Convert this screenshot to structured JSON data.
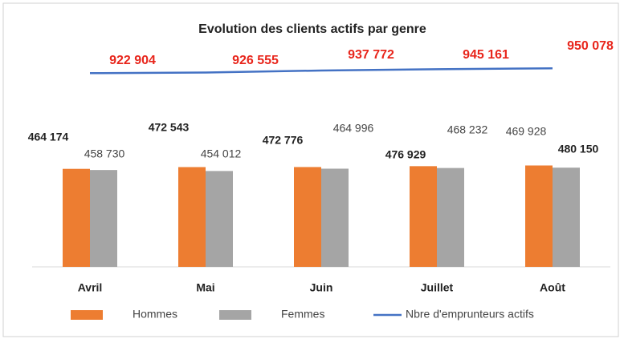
{
  "chart_data": {
    "type": "bar",
    "title": "Evolution des clients actifs par genre",
    "categories": [
      "Avril",
      "Mai",
      "Juin",
      "Juillet",
      "Août"
    ],
    "ylim": [
      0,
      1150000
    ],
    "y2lim": [
      -170000,
      1200000
    ],
    "series": [
      {
        "name": "Hommes",
        "color": "#ed7d31",
        "values": [
          464174,
          472543,
          472776,
          476929,
          480150
        ],
        "value_labels": [
          "464 174",
          "472 543",
          "472 776",
          "476 929",
          "480 150"
        ]
      },
      {
        "name": "Femmes",
        "color": "#a5a5a5",
        "values": [
          458730,
          454012,
          464996,
          468232,
          469928
        ],
        "value_labels": [
          "458 730",
          "454 012",
          "464 996",
          "468 232",
          "469 928"
        ]
      },
      {
        "name": "Nbre d'emprunteurs actifs",
        "color": "#4472c4",
        "type": "line",
        "axis": "y2",
        "values": [
          922904,
          926555,
          937772,
          945161,
          950078
        ],
        "value_labels": [
          "922 904",
          "926 555",
          "937 772",
          "945 161",
          "950 078"
        ]
      }
    ]
  }
}
